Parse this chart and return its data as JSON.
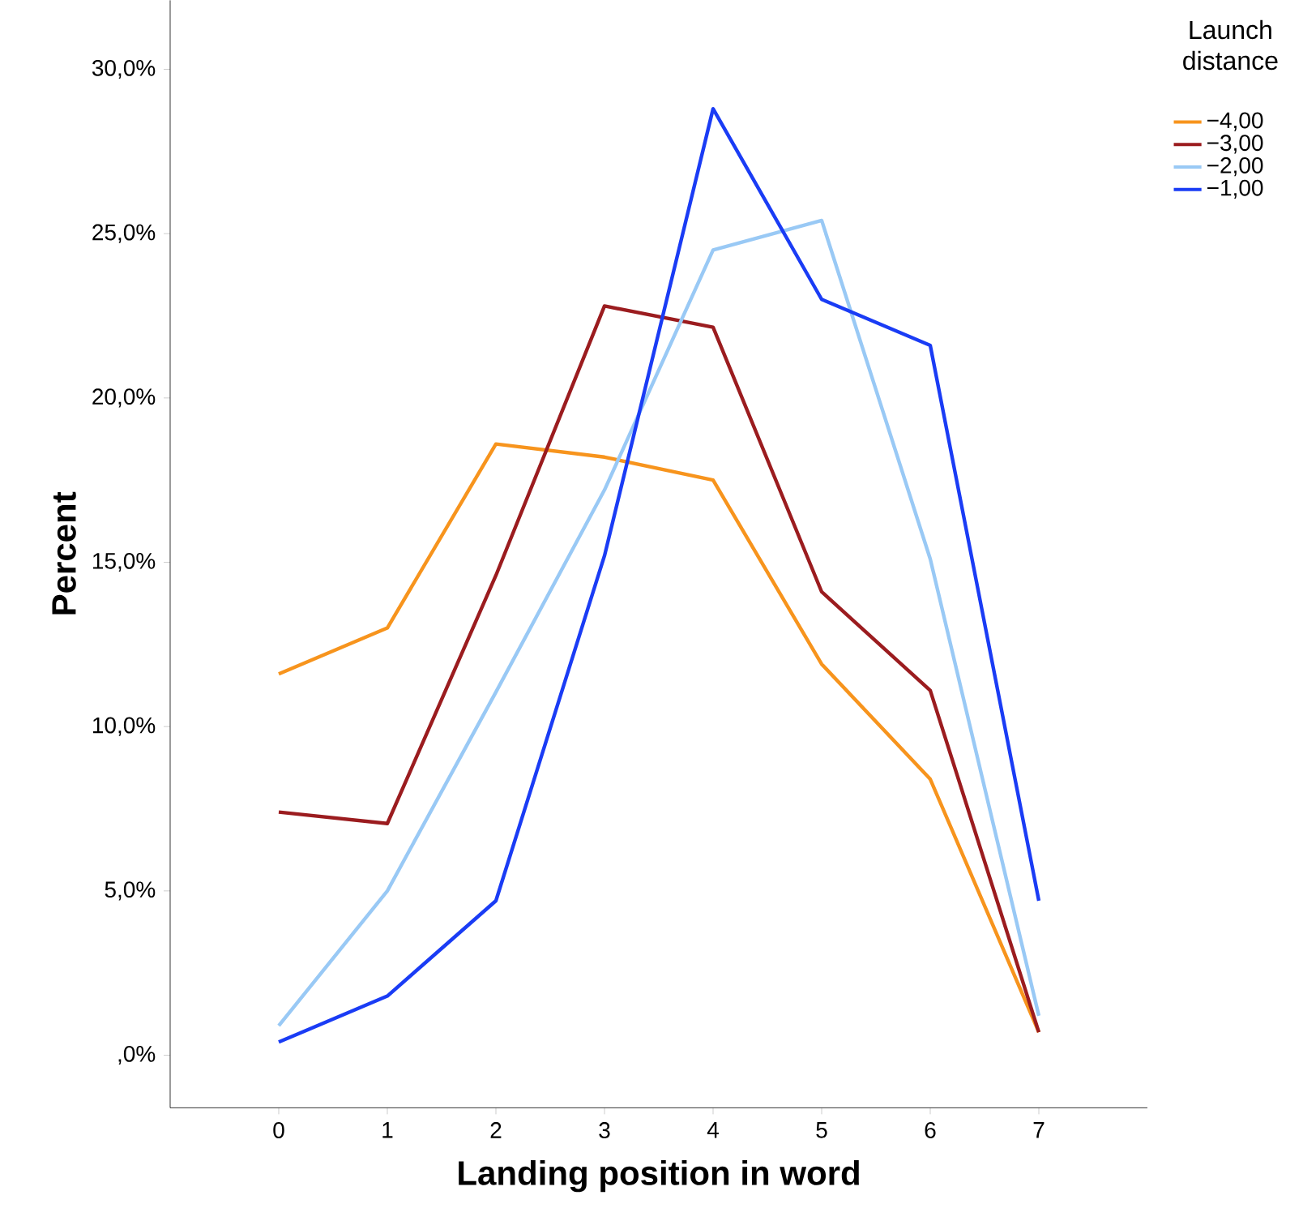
{
  "chart_data": {
    "type": "line",
    "xlabel": "Landing position in word",
    "ylabel": "Percent",
    "legend_title": "Launch distance",
    "legend": "top right",
    "grid": false,
    "line_style": "solid",
    "marker": "none",
    "x": [
      0,
      1,
      2,
      3,
      4,
      5,
      6,
      7
    ],
    "xlim": [
      -1,
      8
    ],
    "xticks": [
      0,
      1,
      2,
      3,
      4,
      5,
      6,
      7
    ],
    "ylim": [
      -1.6,
      32.1
    ],
    "yticks": [
      {
        "value": 0,
        "label": ",0%"
      },
      {
        "value": 5,
        "label": "5,0%"
      },
      {
        "value": 10,
        "label": "10,0%"
      },
      {
        "value": 15,
        "label": "15,0%"
      },
      {
        "value": 20,
        "label": "20,0%"
      },
      {
        "value": 25,
        "label": "25,0%"
      },
      {
        "value": 30,
        "label": "30,0%"
      }
    ],
    "series": [
      {
        "name": "−4,00",
        "color": "#f7941d",
        "values": [
          11.6,
          13.0,
          18.6,
          18.2,
          17.5,
          11.9,
          8.4,
          0.7
        ]
      },
      {
        "name": "−3,00",
        "color": "#9b1c1f",
        "values": [
          7.4,
          7.05,
          14.6,
          22.8,
          22.15,
          14.1,
          11.1,
          0.7
        ]
      },
      {
        "name": "−2,00",
        "color": "#99c9f5",
        "values": [
          0.9,
          5.0,
          11.05,
          17.2,
          24.5,
          25.4,
          15.1,
          1.2
        ]
      },
      {
        "name": "−1,00",
        "color": "#1a3cf5",
        "values": [
          0.4,
          1.8,
          4.7,
          15.2,
          28.8,
          23.0,
          21.6,
          4.7
        ]
      }
    ]
  }
}
